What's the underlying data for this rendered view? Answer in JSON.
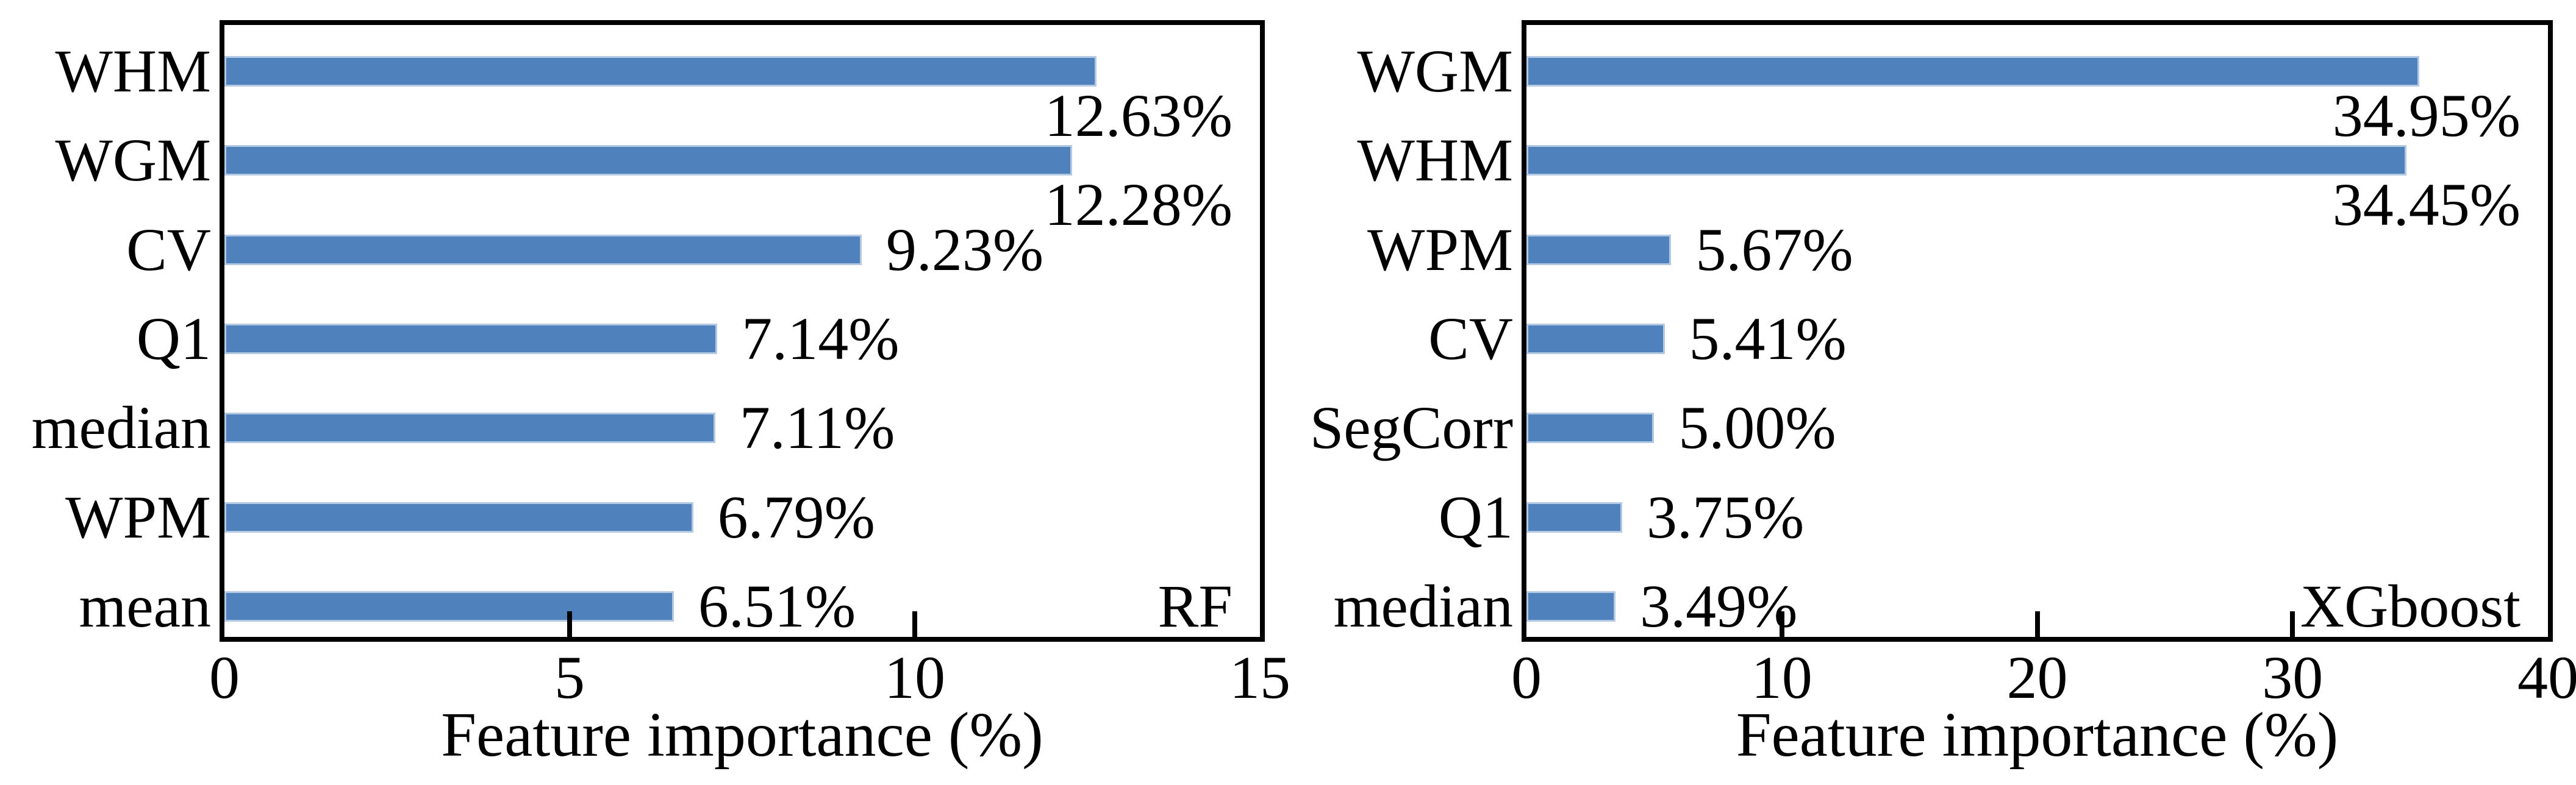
{
  "chart_data": [
    {
      "type": "bar",
      "orientation": "horizontal",
      "corner_label": "RF",
      "xlabel": "Feature importance (%)",
      "xlim": [
        0,
        15
      ],
      "xticks": [
        0,
        5,
        10,
        15
      ],
      "xtick_labels": [
        "0",
        "5",
        "10",
        "15"
      ],
      "categories": [
        "WHM",
        "WGM",
        "CV",
        "Q1",
        "median",
        "WPM",
        "mean"
      ],
      "values": [
        12.63,
        12.28,
        9.23,
        7.14,
        7.11,
        6.79,
        6.51
      ],
      "value_labels": [
        "12.63%",
        "12.28%",
        "9.23%",
        "7.14%",
        "7.11%",
        "6.79%",
        "6.51%"
      ],
      "grid": false,
      "bar_color": "#4F81BD",
      "bar_edge_color": "#B3C9E3",
      "axis_color": "#000000",
      "text_color": "#000000"
    },
    {
      "type": "bar",
      "orientation": "horizontal",
      "corner_label": "XGboost",
      "xlabel": "Feature importance (%)",
      "xlim": [
        0,
        40
      ],
      "xticks": [
        0,
        10,
        20,
        30,
        40
      ],
      "xtick_labels": [
        "0",
        "10",
        "20",
        "30",
        "40"
      ],
      "categories": [
        "WGM",
        "WHM",
        "WPM",
        "CV",
        "SegCorr",
        "Q1",
        "median"
      ],
      "values": [
        34.95,
        34.45,
        5.67,
        5.41,
        5.0,
        3.75,
        3.49
      ],
      "value_labels": [
        "34.95%",
        "34.45%",
        "5.67%",
        "5.41%",
        "5.00%",
        "3.75%",
        "3.49%"
      ],
      "grid": false,
      "bar_color": "#4F81BD",
      "bar_edge_color": "#B3C9E3",
      "axis_color": "#000000",
      "text_color": "#000000"
    }
  ]
}
